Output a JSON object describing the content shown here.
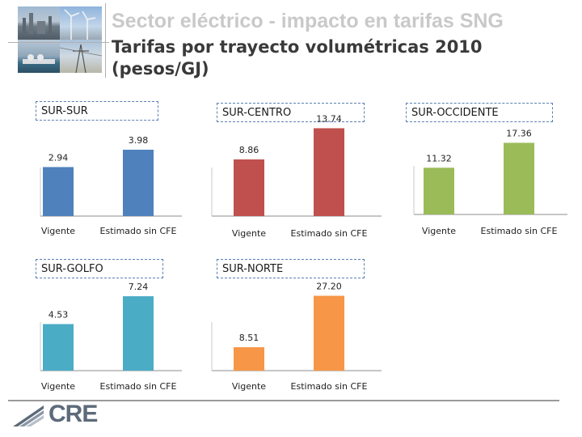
{
  "header": {
    "title": "Sector eléctrico - impacto en tarifas SNG",
    "subtitle": "Tarifas por trayecto volumétricas 2010 (pesos/GJ)"
  },
  "logo": {
    "text": "CRE",
    "icon": "cre-logo-icon"
  },
  "colors": {
    "SUR-SUR": "#4F81BD",
    "SUR-CENTRO": "#C0504D",
    "SUR-OCCIDENTE": "#9BBB59",
    "SUR-GOLFO": "#4BACC6",
    "SUR-NORTE": "#F79646"
  },
  "chart_data": [
    {
      "type": "bar",
      "title": "SUR-SUR",
      "categories": [
        "Vigente",
        "Estimado sin CFE"
      ],
      "values": [
        2.94,
        3.98
      ],
      "value_labels": [
        "2.94",
        "3.98"
      ]
    },
    {
      "type": "bar",
      "title": "SUR-CENTRO",
      "categories": [
        "Vigente",
        "Estimado sin CFE"
      ],
      "values": [
        8.86,
        13.74
      ],
      "value_labels": [
        "8.86",
        "13.74"
      ]
    },
    {
      "type": "bar",
      "title": "SUR-OCCIDENTE",
      "categories": [
        "Vigente",
        "Estimado sin CFE"
      ],
      "values": [
        11.32,
        17.36
      ],
      "value_labels": [
        "11.32",
        "17.36"
      ]
    },
    {
      "type": "bar",
      "title": "SUR-GOLFO",
      "categories": [
        "Vigente",
        "Estimado sin CFE"
      ],
      "values": [
        4.53,
        7.24
      ],
      "value_labels": [
        "4.53",
        "7.24"
      ]
    },
    {
      "type": "bar",
      "title": "SUR-NORTE",
      "categories": [
        "Vigente",
        "Estimado sin CFE"
      ],
      "values": [
        8.51,
        27.2
      ],
      "value_labels": [
        "8.51",
        "27.20"
      ]
    }
  ]
}
